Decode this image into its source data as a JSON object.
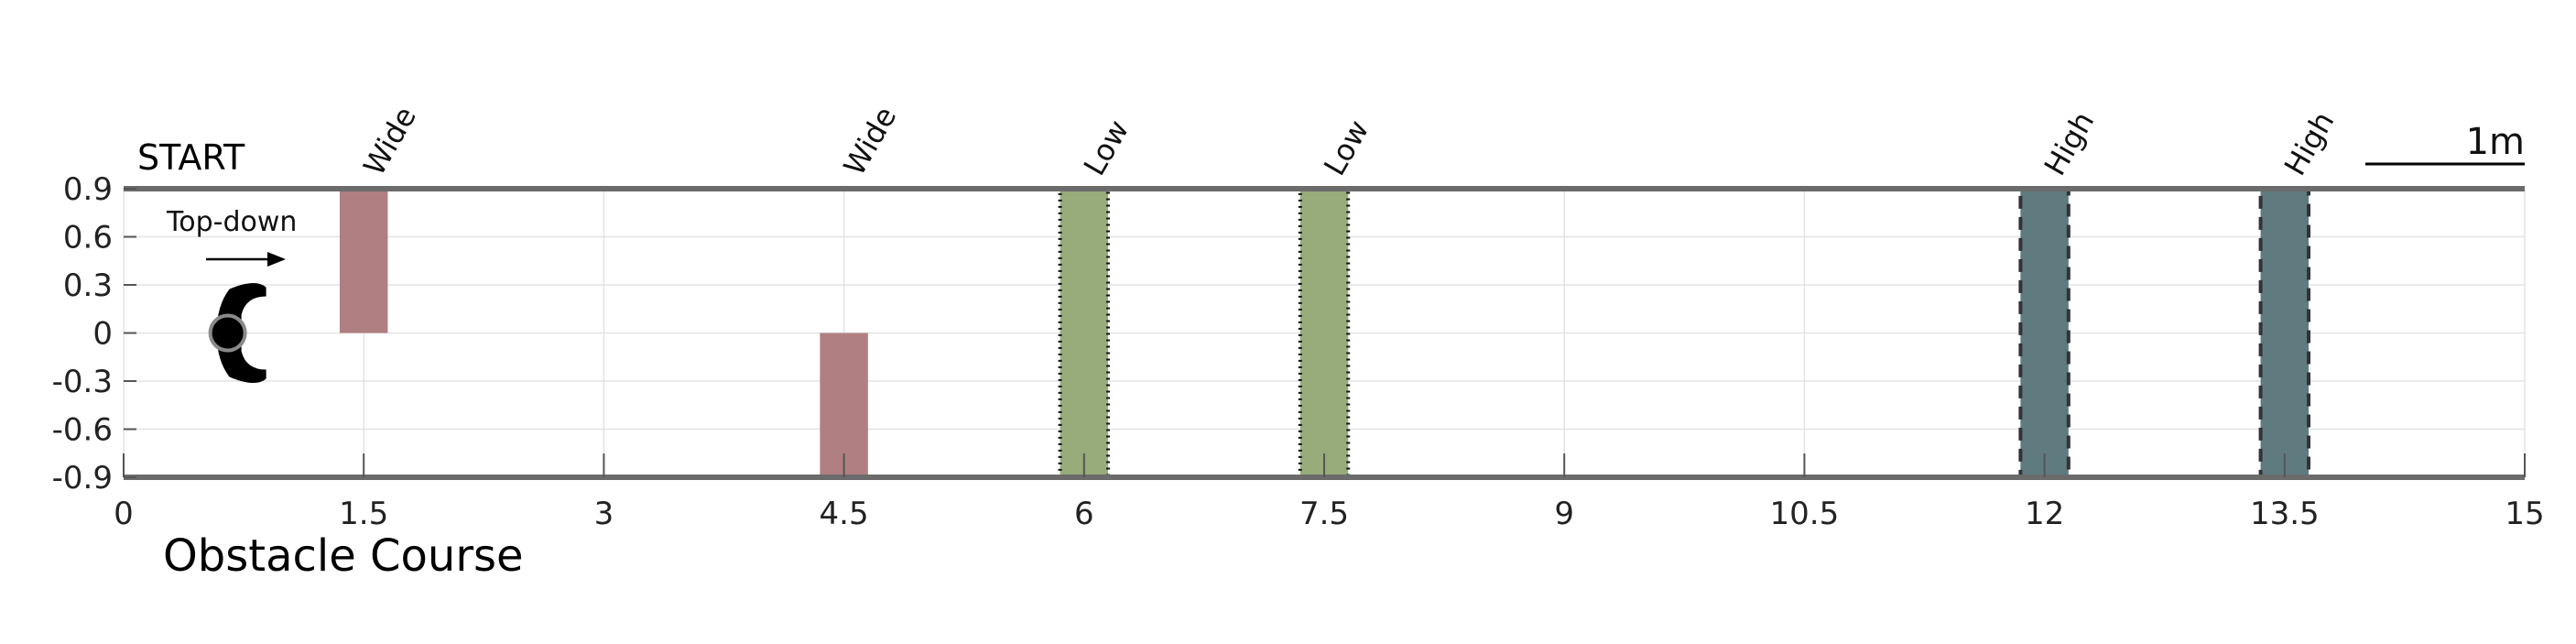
{
  "chart_data": {
    "type": "diagram",
    "title": "Obstacle Course",
    "start_label": "START",
    "robot_view_label": "Top-down",
    "scale_bar_label": "1m",
    "xlim": [
      0,
      15
    ],
    "ylim": [
      -0.9,
      0.9
    ],
    "x_ticks": [
      0,
      1.5,
      3,
      4.5,
      6,
      7.5,
      9,
      10.5,
      12,
      13.5,
      15
    ],
    "x_tick_labels": [
      "0",
      "1.5",
      "3",
      "4.5",
      "6",
      "7.5",
      "9",
      "10.5",
      "12",
      "13.5",
      "15"
    ],
    "y_ticks": [
      0.9,
      0.6,
      0.3,
      0,
      -0.3,
      -0.6,
      -0.9
    ],
    "y_tick_labels": [
      "0.9",
      "0.6",
      "0.3",
      "0",
      "-0.3",
      "-0.6",
      "-0.9"
    ],
    "grid": true,
    "robot_position": {
      "x": 0.65,
      "y": 0
    },
    "obstacles": [
      {
        "label": "Wide",
        "x0": 1.35,
        "x1": 1.65,
        "y0": 0,
        "y1": 0.9,
        "color": "#b07f82",
        "border": "none"
      },
      {
        "label": "Wide",
        "x0": 4.35,
        "x1": 4.65,
        "y0": -0.9,
        "y1": 0,
        "color": "#b07f82",
        "border": "none"
      },
      {
        "label": "Low",
        "x0": 5.85,
        "x1": 6.15,
        "y0": -0.9,
        "y1": 0.9,
        "color": "#98ab7a",
        "border": "dotted"
      },
      {
        "label": "Low",
        "x0": 7.35,
        "x1": 7.65,
        "y0": -0.9,
        "y1": 0.9,
        "color": "#98ab7a",
        "border": "dotted"
      },
      {
        "label": "High",
        "x0": 11.85,
        "x1": 12.15,
        "y0": -0.9,
        "y1": 0.9,
        "color": "#5f7b7f",
        "border": "dashed"
      },
      {
        "label": "High",
        "x0": 13.35,
        "x1": 13.65,
        "y0": -0.9,
        "y1": 0.9,
        "color": "#5f7b7f",
        "border": "dashed"
      }
    ]
  }
}
